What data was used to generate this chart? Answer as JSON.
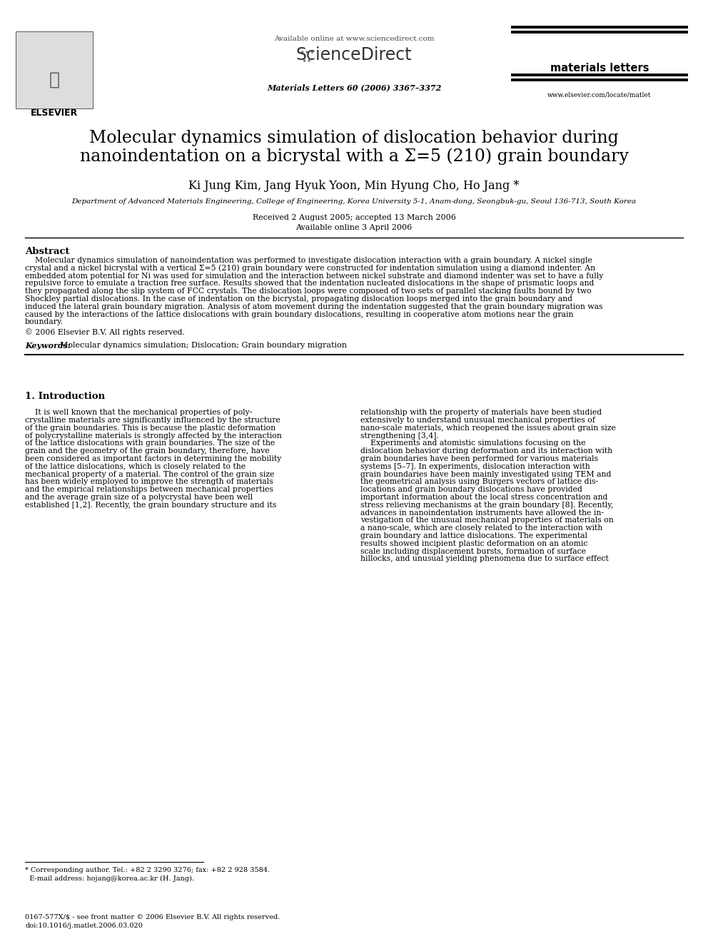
{
  "page_bg": "#ffffff",
  "header": {
    "available_online": "Available online at www.sciencedirect.com",
    "journal_name": "materials letters",
    "journal_info": "Materials Letters 60 (2006) 3367–3372",
    "website": "www.elsevier.com/locate/matlet"
  },
  "title_line1": "Molecular dynamics simulation of dislocation behavior during",
  "title_line2": "nanoindentation on a bicrystal with a Σ=5 (210) grain boundary",
  "authors": "Ki Jung Kim, Jang Hyuk Yoon, Min Hyung Cho, Ho Jang *",
  "affiliation": "Department of Advanced Materials Engineering, College of Engineering, Korea University 5-1, Anam-dong, Seongbuk-gu, Seoul 136-713, South Korea",
  "date_line1": "Received 2 August 2005; accepted 13 March 2006",
  "date_line2": "Available online 3 April 2006",
  "abstract_title": "Abstract",
  "abstract_lines": [
    "    Molecular dynamics simulation of nanoindentation was performed to investigate dislocation interaction with a grain boundary. A nickel single",
    "crystal and a nickel bicrystal with a vertical Σ=5 (210) grain boundary were constructed for indentation simulation using a diamond indenter. An",
    "embedded atom potential for Ni was used for simulation and the interaction between nickel substrate and diamond indenter was set to have a fully",
    "repulsive force to emulate a traction free surface. Results showed that the indentation nucleated dislocations in the shape of prismatic loops and",
    "they propagated along the slip system of FCC crystals. The dislocation loops were composed of two sets of parallel stacking faults bound by two",
    "Shockley partial dislocations. In the case of indentation on the bicrystal, propagating dislocation loops merged into the grain boundary and",
    "induced the lateral grain boundary migration. Analysis of atom movement during the indentation suggested that the grain boundary migration was",
    "caused by the interactions of the lattice dislocations with grain boundary dislocations, resulting in cooperative atom motions near the grain",
    "boundary."
  ],
  "copyright": "© 2006 Elsevier B.V. All rights reserved.",
  "keywords_label": "Keywords:",
  "keywords": "Molecular dynamics simulation; Dislocation; Grain boundary migration",
  "section1_title": "1. Introduction",
  "left_col_lines": [
    "    It is well known that the mechanical properties of poly-",
    "crystalline materials are significantly influenced by the structure",
    "of the grain boundaries. This is because the plastic deformation",
    "of polycrystalline materials is strongly affected by the interaction",
    "of the lattice dislocations with grain boundaries. The size of the",
    "grain and the geometry of the grain boundary, therefore, have",
    "been considered as important factors in determining the mobility",
    "of the lattice dislocations, which is closely related to the",
    "mechanical property of a material. The control of the grain size",
    "has been widely employed to improve the strength of materials",
    "and the empirical relationships between mechanical properties",
    "and the average grain size of a polycrystal have been well",
    "established [1,2]. Recently, the grain boundary structure and its"
  ],
  "right_col_lines": [
    "relationship with the property of materials have been studied",
    "extensively to understand unusual mechanical properties of",
    "nano-scale materials, which reopened the issues about grain size",
    "strengthening [3,4].",
    "    Experiments and atomistic simulations focusing on the",
    "dislocation behavior during deformation and its interaction with",
    "grain boundaries have been performed for various materials",
    "systems [5–7]. In experiments, dislocation interaction with",
    "grain boundaries have been mainly investigated using TEM and",
    "the geometrical analysis using Burgers vectors of lattice dis-",
    "locations and grain boundary dislocations have provided",
    "important information about the local stress concentration and",
    "stress relieving mechanisms at the grain boundary [8]. Recently,",
    "advances in nanoindentation instruments have allowed the in-",
    "vestigation of the unusual mechanical properties of materials on",
    "a nano-scale, which are closely related to the interaction with",
    "grain boundary and lattice dislocations. The experimental",
    "results showed incipient plastic deformation on an atomic",
    "scale including displacement bursts, formation of surface",
    "hillocks, and unusual yielding phenomena due to surface effect"
  ],
  "footnote_line1": "* Corresponding author. Tel.: +82 2 3290 3276; fax: +82 2 928 3584.",
  "footnote_line2": "  E-mail address: hojang@korea.ac.kr (H. Jang).",
  "footer_line1": "0167-577X/$ - see front matter © 2006 Elsevier B.V. All rights reserved.",
  "footer_line2": "doi:10.1016/j.matlet.2006.03.020"
}
